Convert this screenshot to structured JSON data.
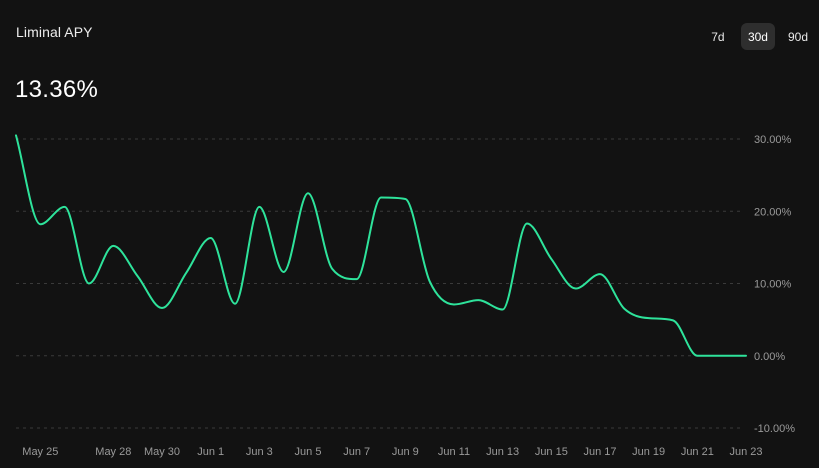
{
  "header": {
    "title": "Liminal APY",
    "current_value": "13.36%"
  },
  "range_tabs": [
    {
      "label": "7d",
      "active": false
    },
    {
      "label": "30d",
      "active": true
    },
    {
      "label": "90d",
      "active": false
    }
  ],
  "colors": {
    "line": "#2ee39b",
    "background": "#121212",
    "grid": "#3a3a3a",
    "tick_text": "#9a9a9a"
  },
  "chart_data": {
    "type": "line",
    "title": "Liminal APY",
    "xlabel": "",
    "ylabel": "",
    "x_ticks": [
      "May 25",
      "May 28",
      "May 30",
      "Jun 1",
      "Jun 3",
      "Jun 5",
      "Jun 7",
      "Jun 9",
      "Jun 11",
      "Jun 13",
      "Jun 15",
      "Jun 17",
      "Jun 19",
      "Jun 21",
      "Jun 23"
    ],
    "y_ticks": [
      {
        "value": 30,
        "label": "30.00%"
      },
      {
        "value": 20,
        "label": "20.00%"
      },
      {
        "value": 10,
        "label": "10.00%"
      },
      {
        "value": 0,
        "label": "0.00%"
      },
      {
        "value": -10,
        "label": "-10.00%"
      }
    ],
    "ylim": [
      -10,
      31
    ],
    "grid": true,
    "y_axis_position": "right",
    "series": [
      {
        "x": [
          "May 24",
          "May 25",
          "May 26",
          "May 27",
          "May 28",
          "May 29",
          "May 30",
          "May 31",
          "Jun 1",
          "Jun 2",
          "Jun 3",
          "Jun 4",
          "Jun 5",
          "Jun 6",
          "Jun 7",
          "Jun 8",
          "Jun 9",
          "Jun 10",
          "Jun 11",
          "Jun 12",
          "Jun 13",
          "Jun 14",
          "Jun 15",
          "Jun 16",
          "Jun 17",
          "Jun 18",
          "Jun 19",
          "Jun 20",
          "Jun 21",
          "Jun 22",
          "Jun 23"
        ],
        "values": [
          30.5,
          18.2,
          20.6,
          10.0,
          15.2,
          11.0,
          6.6,
          11.5,
          16.3,
          7.2,
          20.6,
          11.6,
          22.5,
          12.0,
          10.6,
          21.9,
          21.7,
          10.3,
          7.1,
          7.7,
          6.4,
          18.3,
          13.4,
          9.3,
          11.3,
          6.5,
          5.2,
          4.9,
          0.0,
          0.0,
          0.0
        ]
      }
    ]
  }
}
